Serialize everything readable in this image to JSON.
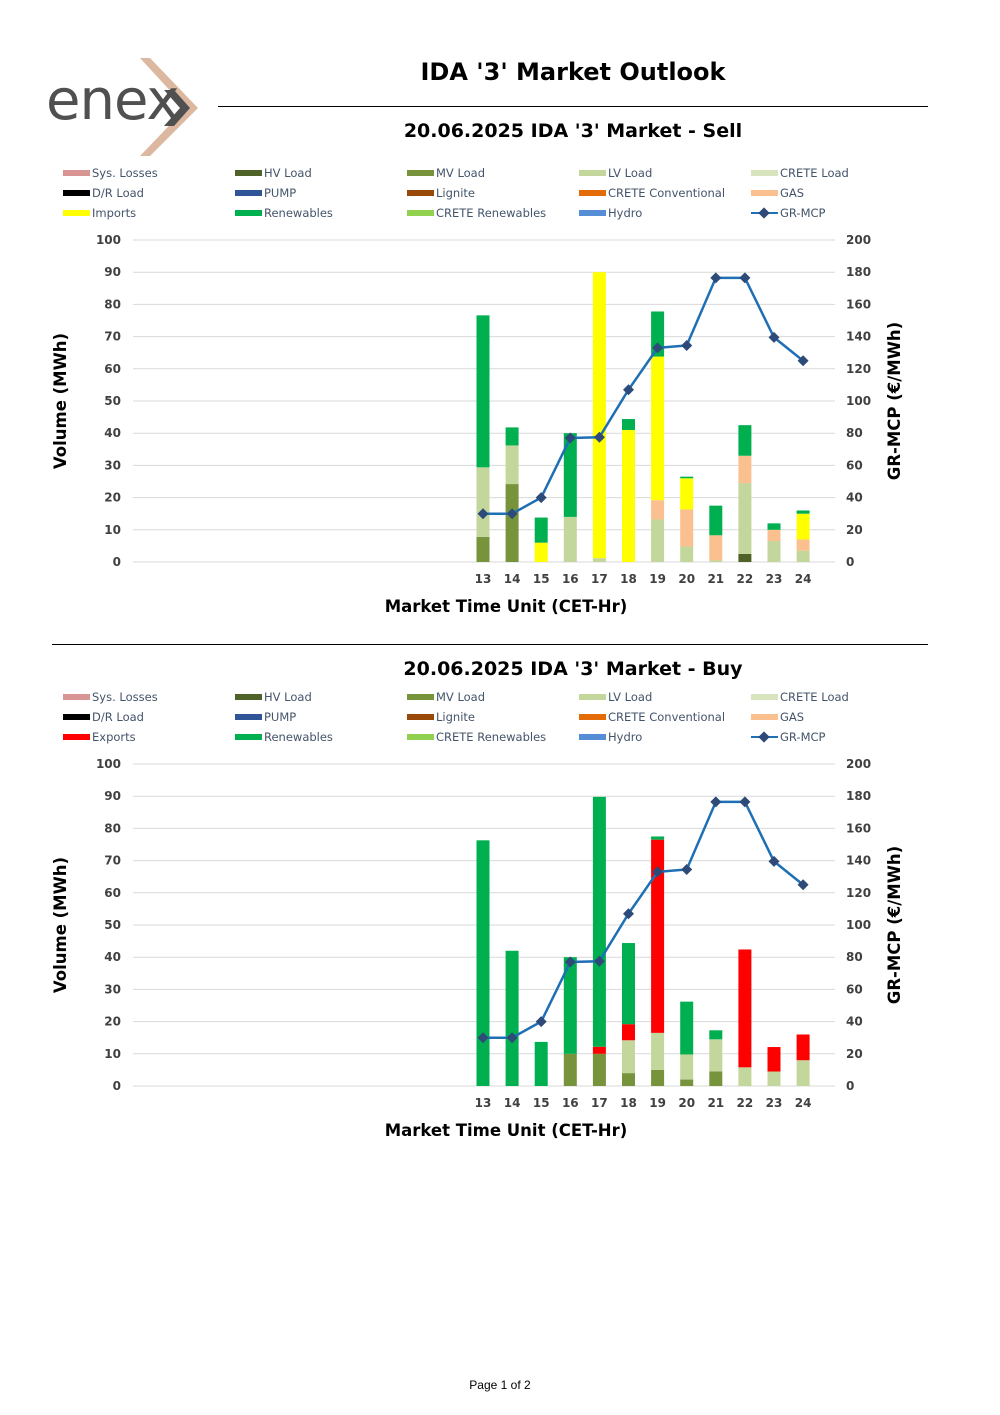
{
  "header": {
    "logo_text": "enex",
    "title": "IDA '3' Market Outlook"
  },
  "colors": {
    "sys_losses": "#D99594",
    "hv_load": "#4F6228",
    "mv_load": "#77933C",
    "lv_load": "#C3D69B",
    "crete_load": "#D7E4BD",
    "dr_load": "#000000",
    "pump": "#2F5597",
    "lignite": "#984807",
    "crete_conventional": "#E36C09",
    "gas": "#FAC090",
    "imports": "#FFFF00",
    "exports": "#FF0000",
    "renewables": "#00B050",
    "crete_renewables": "#92D050",
    "hydro": "#558ED5",
    "gr_mcp_line": "#1F6FB4",
    "gr_mcp_marker": "#2E4A78"
  },
  "chart_data": [
    {
      "type": "bar",
      "title": "20.06.2025  IDA '3' Market - Sell",
      "xlabel": "Market Time Unit (CET-Hr)",
      "ylabel": "Volume (MWh)",
      "y2label": "GR-MCP (€/MWh)",
      "ylim": [
        0,
        100
      ],
      "y2lim": [
        0,
        200
      ],
      "yticks": [
        "0",
        "10",
        "20",
        "30",
        "40",
        "50",
        "60",
        "70",
        "80",
        "90",
        "100"
      ],
      "y2ticks": [
        "0",
        "20",
        "40",
        "60",
        "80",
        "100",
        "120",
        "140",
        "160",
        "180",
        "200"
      ],
      "categories": [
        "13",
        "14",
        "15",
        "16",
        "17",
        "18",
        "19",
        "20",
        "21",
        "22",
        "23",
        "24"
      ],
      "legend": [
        {
          "label": "Sys. Losses",
          "color": "#D99594",
          "kind": "bar"
        },
        {
          "label": "HV Load",
          "color": "#4F6228",
          "kind": "bar"
        },
        {
          "label": "MV Load",
          "color": "#77933C",
          "kind": "bar"
        },
        {
          "label": "LV Load",
          "color": "#C3D69B",
          "kind": "bar"
        },
        {
          "label": "CRETE Load",
          "color": "#D7E4BD",
          "kind": "bar"
        },
        {
          "label": "D/R Load",
          "color": "#000000",
          "kind": "bar"
        },
        {
          "label": "PUMP",
          "color": "#2F5597",
          "kind": "bar"
        },
        {
          "label": "Lignite",
          "color": "#984807",
          "kind": "bar"
        },
        {
          "label": "CRETE Conventional",
          "color": "#E36C09",
          "kind": "bar"
        },
        {
          "label": "GAS",
          "color": "#FAC090",
          "kind": "bar"
        },
        {
          "label": "Imports",
          "color": "#FFFF00",
          "kind": "bar"
        },
        {
          "label": "Renewables",
          "color": "#00B050",
          "kind": "bar"
        },
        {
          "label": "CRETE Renewables",
          "color": "#92D050",
          "kind": "bar"
        },
        {
          "label": "Hydro",
          "color": "#558ED5",
          "kind": "bar"
        },
        {
          "label": "GR-MCP",
          "color": "#1F6FB4",
          "kind": "line"
        }
      ],
      "series": [
        {
          "name": "HV Load",
          "color": "#4F6228",
          "values": [
            0,
            0,
            0,
            0,
            0,
            0,
            0,
            0,
            0,
            2.5,
            0,
            0
          ]
        },
        {
          "name": "MV Load",
          "color": "#77933C",
          "values": [
            7.8,
            24.2,
            0,
            0,
            0,
            0,
            0,
            0,
            0,
            0,
            0,
            0
          ]
        },
        {
          "name": "LV Load",
          "color": "#C3D69B",
          "values": [
            21.6,
            12,
            0,
            14,
            1.2,
            0,
            13.2,
            4.8,
            0.5,
            22,
            6.5,
            3.5
          ]
        },
        {
          "name": "GAS",
          "color": "#FAC090",
          "values": [
            0,
            0,
            0,
            0,
            0,
            0,
            6,
            11.5,
            7.8,
            8.5,
            3.5,
            3.5
          ]
        },
        {
          "name": "Imports",
          "color": "#FFFF00",
          "values": [
            0,
            0,
            6,
            0,
            88.8,
            41,
            44.6,
            9.7,
            0,
            0,
            0,
            8
          ]
        },
        {
          "name": "Renewables",
          "color": "#00B050",
          "values": [
            47.2,
            5.6,
            7.8,
            26,
            0,
            3.4,
            14,
            0.5,
            9.2,
            9.5,
            2,
            1
          ]
        }
      ],
      "line": {
        "name": "GR-MCP",
        "values": [
          30,
          30,
          40,
          77,
          77.5,
          107,
          133,
          134.5,
          176.5,
          176.5,
          139.5,
          125
        ]
      }
    },
    {
      "type": "bar",
      "title": "20.06.2025  IDA '3' Market - Buy",
      "xlabel": "Market Time Unit (CET-Hr)",
      "ylabel": "Volume (MWh)",
      "y2label": "GR-MCP (€/MWh)",
      "ylim": [
        0,
        100
      ],
      "y2lim": [
        0,
        200
      ],
      "yticks": [
        "0",
        "10",
        "20",
        "30",
        "40",
        "50",
        "60",
        "70",
        "80",
        "90",
        "100"
      ],
      "y2ticks": [
        "0",
        "20",
        "40",
        "60",
        "80",
        "100",
        "120",
        "140",
        "160",
        "180",
        "200"
      ],
      "categories": [
        "13",
        "14",
        "15",
        "16",
        "17",
        "18",
        "19",
        "20",
        "21",
        "22",
        "23",
        "24"
      ],
      "legend": [
        {
          "label": "Sys. Losses",
          "color": "#D99594",
          "kind": "bar"
        },
        {
          "label": "HV Load",
          "color": "#4F6228",
          "kind": "bar"
        },
        {
          "label": "MV Load",
          "color": "#77933C",
          "kind": "bar"
        },
        {
          "label": "LV Load",
          "color": "#C3D69B",
          "kind": "bar"
        },
        {
          "label": "CRETE Load",
          "color": "#D7E4BD",
          "kind": "bar"
        },
        {
          "label": "D/R Load",
          "color": "#000000",
          "kind": "bar"
        },
        {
          "label": "PUMP",
          "color": "#2F5597",
          "kind": "bar"
        },
        {
          "label": "Lignite",
          "color": "#984807",
          "kind": "bar"
        },
        {
          "label": "CRETE Conventional",
          "color": "#E36C09",
          "kind": "bar"
        },
        {
          "label": "GAS",
          "color": "#FAC090",
          "kind": "bar"
        },
        {
          "label": "Exports",
          "color": "#FF0000",
          "kind": "bar"
        },
        {
          "label": "Renewables",
          "color": "#00B050",
          "kind": "bar"
        },
        {
          "label": "CRETE Renewables",
          "color": "#92D050",
          "kind": "bar"
        },
        {
          "label": "Hydro",
          "color": "#558ED5",
          "kind": "bar"
        },
        {
          "label": "GR-MCP",
          "color": "#1F6FB4",
          "kind": "line"
        }
      ],
      "series": [
        {
          "name": "MV Load",
          "color": "#77933C",
          "values": [
            0,
            0,
            0,
            10,
            10,
            4,
            5,
            2,
            4.5,
            0,
            0,
            0
          ]
        },
        {
          "name": "LV Load",
          "color": "#C3D69B",
          "values": [
            0,
            0,
            0,
            0,
            0,
            10.2,
            11.5,
            7.8,
            10,
            5.8,
            4.5,
            8
          ]
        },
        {
          "name": "Exports",
          "color": "#FF0000",
          "values": [
            0,
            0,
            0,
            0,
            2.2,
            5,
            60,
            0,
            0,
            36.6,
            7.6,
            8
          ]
        },
        {
          "name": "Renewables",
          "color": "#00B050",
          "values": [
            76.3,
            42,
            13.7,
            30,
            77.6,
            25.2,
            1,
            16.4,
            2.8,
            0,
            0,
            0
          ]
        }
      ],
      "line": {
        "name": "GR-MCP",
        "values": [
          30,
          30,
          40,
          77,
          77.5,
          107,
          133,
          134.5,
          176.5,
          176.5,
          139.5,
          125
        ]
      }
    }
  ],
  "footer": {
    "page_label": "Page 1 of 2"
  }
}
